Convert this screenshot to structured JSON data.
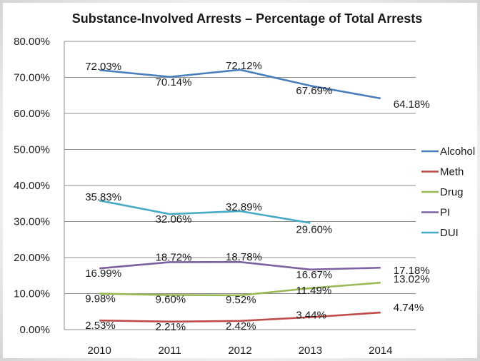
{
  "chart_data": {
    "type": "line",
    "title": "Substance-Involved Arrests – Percentage of Total Arrests",
    "xlabel": "",
    "ylabel": "",
    "x": [
      "2010",
      "2011",
      "2012",
      "2013",
      "2014"
    ],
    "ylim": [
      0,
      80
    ],
    "y_ticks": [
      "0.00%",
      "10.00%",
      "20.00%",
      "30.00%",
      "40.00%",
      "50.00%",
      "60.00%",
      "70.00%",
      "80.00%"
    ],
    "grid": true,
    "legend_position": "right",
    "series": [
      {
        "name": "Alcohol",
        "color": "#4a7ebb",
        "values": [
          72.03,
          70.14,
          72.12,
          67.69,
          64.18
        ],
        "labels": [
          "72.03%",
          "70.14%",
          "72.12%",
          "67.69%",
          "64.18%"
        ]
      },
      {
        "name": "Meth",
        "color": "#be4b48",
        "values": [
          2.53,
          2.21,
          2.42,
          3.44,
          4.74
        ],
        "labels": [
          "2.53%",
          "2.21%",
          "2.42%",
          "3.44%",
          "4.74%"
        ]
      },
      {
        "name": "Drug",
        "color": "#98b954",
        "values": [
          9.98,
          9.6,
          9.52,
          11.49,
          13.02
        ],
        "labels": [
          "9.98%",
          "9.60%",
          "9.52%",
          "11.49%",
          "13.02%"
        ]
      },
      {
        "name": "PI",
        "color": "#7d60a0",
        "values": [
          16.99,
          18.72,
          18.78,
          16.67,
          17.18
        ],
        "labels": [
          "16.99%",
          "18.72%",
          "18.78%",
          "16.67%",
          "17.18%"
        ]
      },
      {
        "name": "DUI",
        "color": "#46aac5",
        "values": [
          35.83,
          32.06,
          32.89,
          29.6,
          null
        ],
        "labels": [
          "35.83%",
          "32.06%",
          "32.89%",
          "29.60%",
          null
        ]
      }
    ]
  }
}
